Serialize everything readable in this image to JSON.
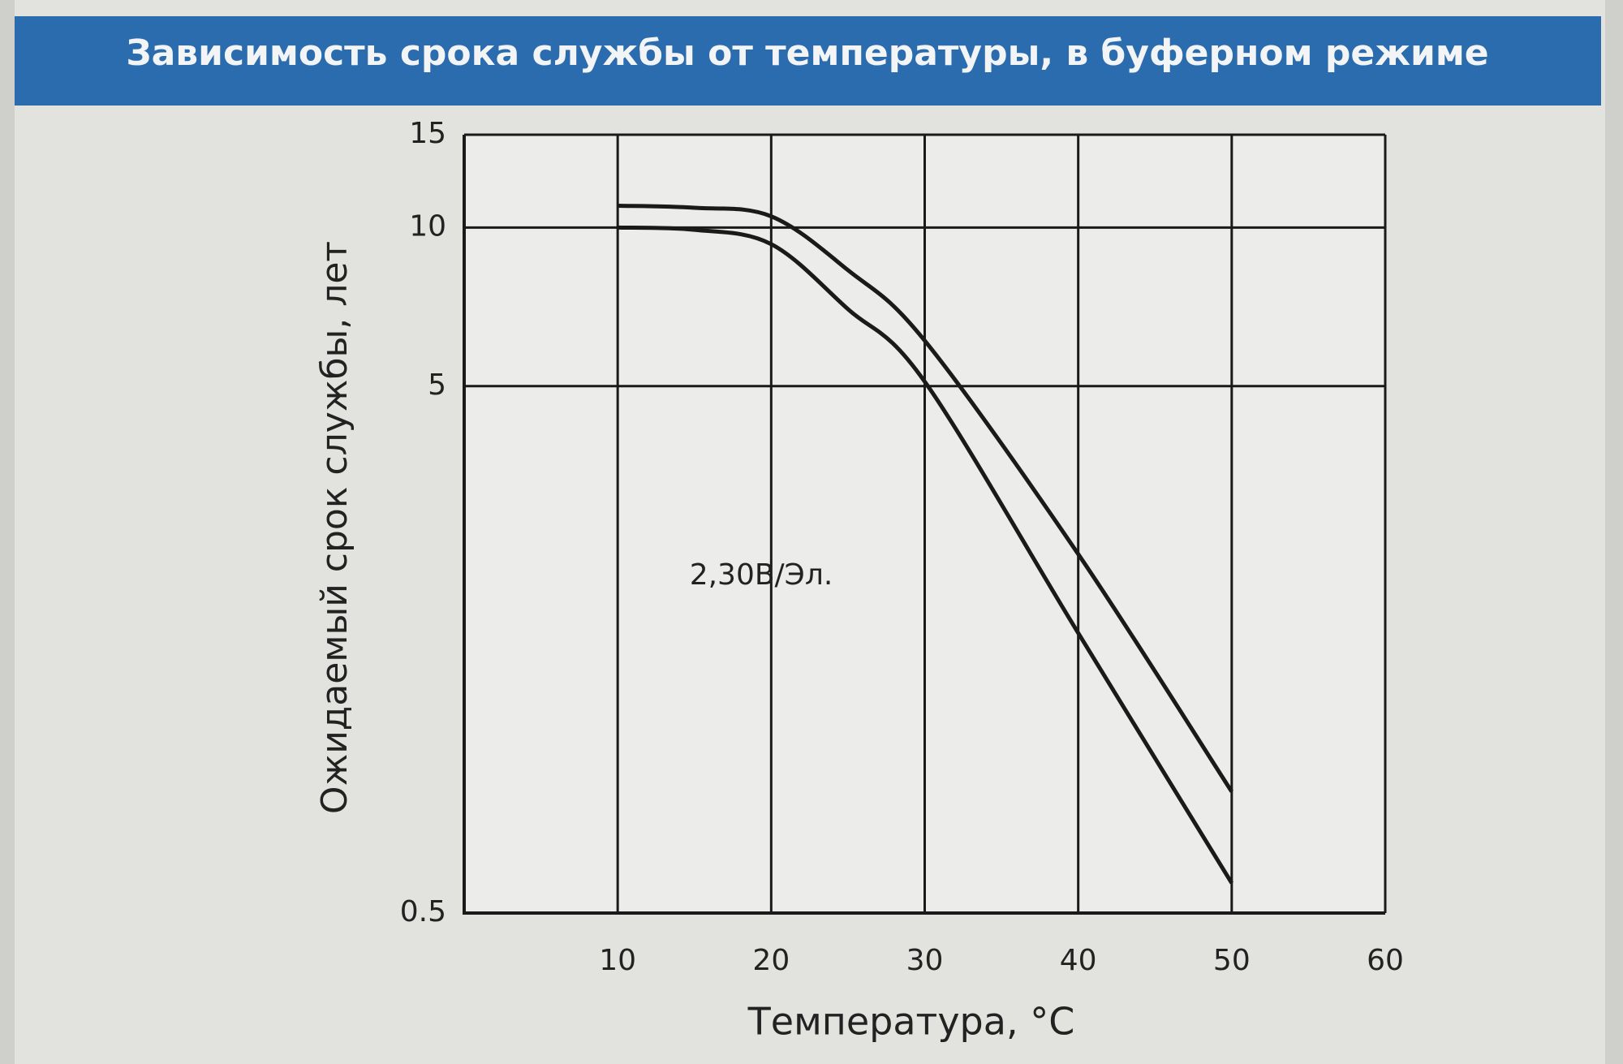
{
  "chart_data": {
    "type": "line",
    "title": "Зависимость срока службы от температуры, в буферном режиме",
    "x_label": "Температура, °C",
    "y_label": "Ожидаемый срок службы, лет",
    "annotation": "2,30В/Эл.",
    "x": [
      10,
      15,
      20,
      25,
      30,
      40,
      50
    ],
    "series": [
      {
        "color": "#1a1a1a",
        "values": [
          11,
          10.9,
          10.5,
          8.3,
          6.1,
          2.4,
          0.85
        ]
      },
      {
        "color": "#1a1a1a",
        "values": [
          10,
          9.9,
          9.3,
          7,
          5.1,
          1.7,
          0.57
        ]
      }
    ],
    "xlim": [
      0,
      60
    ],
    "xticks": [
      10,
      20,
      30,
      40,
      50,
      60
    ],
    "ylim": [
      0.5,
      15
    ],
    "yticks": [
      0.5,
      5,
      10,
      15
    ],
    "log_y": true,
    "grid": true
  }
}
